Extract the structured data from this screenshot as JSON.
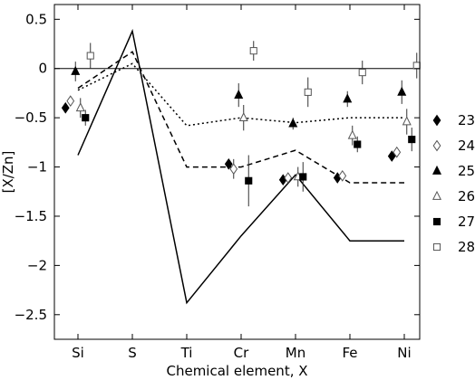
{
  "chart_data": {
    "type": "scatter",
    "xlabel": "Chemical element, X",
    "ylabel": "[X/Zn]",
    "categories": [
      "Si",
      "S",
      "Ti",
      "Cr",
      "Mn",
      "Fe",
      "Ni"
    ],
    "ylim": [
      -2.75,
      0.65
    ],
    "yticks": [
      0.5,
      0,
      -0.5,
      -1,
      -1.5,
      -2,
      -2.5
    ],
    "ytick_labels": [
      "0.5",
      "0",
      "−0.5",
      "−1",
      "−1.5",
      "−2",
      "−2.5"
    ],
    "zero_line": true,
    "grid": false,
    "legend_position": "right",
    "model_lines": [
      {
        "style": "solid",
        "points": [
          [
            0,
            -0.88
          ],
          [
            1,
            0.38
          ],
          [
            2,
            -2.38
          ],
          [
            3,
            -1.7
          ],
          [
            4,
            -1.08
          ],
          [
            5,
            -1.75
          ],
          [
            6,
            -1.75
          ]
        ]
      },
      {
        "style": "dashed",
        "points": [
          [
            0,
            -0.2
          ],
          [
            1,
            0.17
          ],
          [
            2,
            -1.0
          ],
          [
            3,
            -1.0
          ],
          [
            4,
            -0.83
          ],
          [
            5,
            -1.16
          ],
          [
            6,
            -1.16
          ]
        ]
      },
      {
        "style": "dotted",
        "points": [
          [
            0,
            -0.22
          ],
          [
            1,
            0.05
          ],
          [
            2,
            -0.58
          ],
          [
            3,
            -0.5
          ],
          [
            4,
            -0.55
          ],
          [
            5,
            -0.5
          ],
          [
            6,
            -0.5
          ]
        ]
      }
    ],
    "series": [
      {
        "name": "23",
        "marker": "diamond-filled",
        "points": [
          [
            0,
            -0.4,
            0.04
          ],
          [
            3,
            -0.97,
            0.05
          ],
          [
            4,
            -1.13,
            0.04
          ],
          [
            5,
            -1.11,
            0.03
          ],
          [
            6,
            -0.89,
            0.04
          ]
        ]
      },
      {
        "name": "24",
        "marker": "diamond-open",
        "points": [
          [
            0,
            -0.33,
            0.05
          ],
          [
            3,
            -1.02,
            0.1
          ],
          [
            4,
            -1.11,
            0.05
          ],
          [
            5,
            -1.09,
            0.04
          ],
          [
            6,
            -0.85,
            0.05
          ]
        ]
      },
      {
        "name": "25",
        "marker": "triangle-filled",
        "points": [
          [
            0,
            -0.03,
            0.1
          ],
          [
            3,
            -0.27,
            0.12
          ],
          [
            4,
            -0.56,
            0.06
          ],
          [
            5,
            -0.31,
            0.08
          ],
          [
            6,
            -0.24,
            0.12
          ]
        ]
      },
      {
        "name": "26",
        "marker": "triangle-open",
        "points": [
          [
            0,
            -0.4,
            0.1
          ],
          [
            3,
            -0.5,
            0.13
          ],
          [
            4,
            -1.1,
            0.1
          ],
          [
            5,
            -0.68,
            0.1
          ],
          [
            6,
            -0.54,
            0.13
          ]
        ]
      },
      {
        "name": "27",
        "marker": "square-filled",
        "points": [
          [
            0,
            -0.5,
            0.08
          ],
          [
            3,
            -1.14,
            0.26
          ],
          [
            4,
            -1.1,
            0.15
          ],
          [
            5,
            -0.77,
            0.08
          ],
          [
            6,
            -0.72,
            0.12
          ]
        ]
      },
      {
        "name": "28",
        "marker": "square-open",
        "points": [
          [
            0,
            0.13,
            0.13
          ],
          [
            3,
            0.18,
            0.1
          ],
          [
            4,
            -0.24,
            0.15
          ],
          [
            5,
            -0.04,
            0.12
          ],
          [
            6,
            0.03,
            0.13
          ]
        ]
      }
    ]
  }
}
